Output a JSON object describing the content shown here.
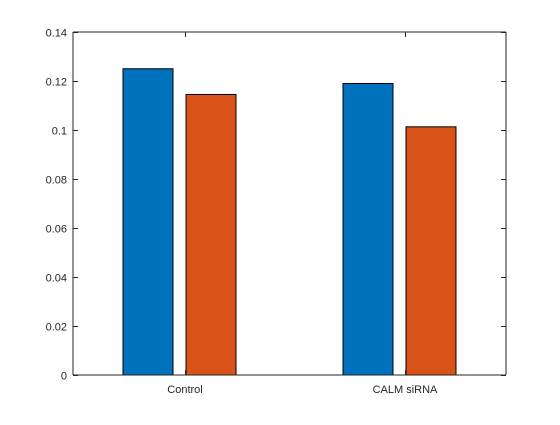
{
  "chart_data": {
    "type": "bar",
    "categories": [
      "Control",
      "CALM siRNA"
    ],
    "series": [
      {
        "values": [
          0.125,
          0.119
        ]
      },
      {
        "values": [
          0.1145,
          0.1013
        ]
      }
    ],
    "ylim": [
      0,
      0.14
    ],
    "yticks": [
      0,
      0.02,
      0.04,
      0.06,
      0.08,
      0.1,
      0.12,
      0.14
    ],
    "ytick_labels": [
      "0",
      "0.02",
      "0.04",
      "0.06",
      "0.08",
      "0.1",
      "0.12",
      "0.14"
    ],
    "title": "",
    "xlabel": "",
    "ylabel": "",
    "grid": false,
    "legend": "none",
    "colors": {
      "series": [
        "#0072BD",
        "#D95319"
      ],
      "axis": "#262626",
      "bar_edge": "#000000",
      "background": "#ffffff"
    }
  }
}
